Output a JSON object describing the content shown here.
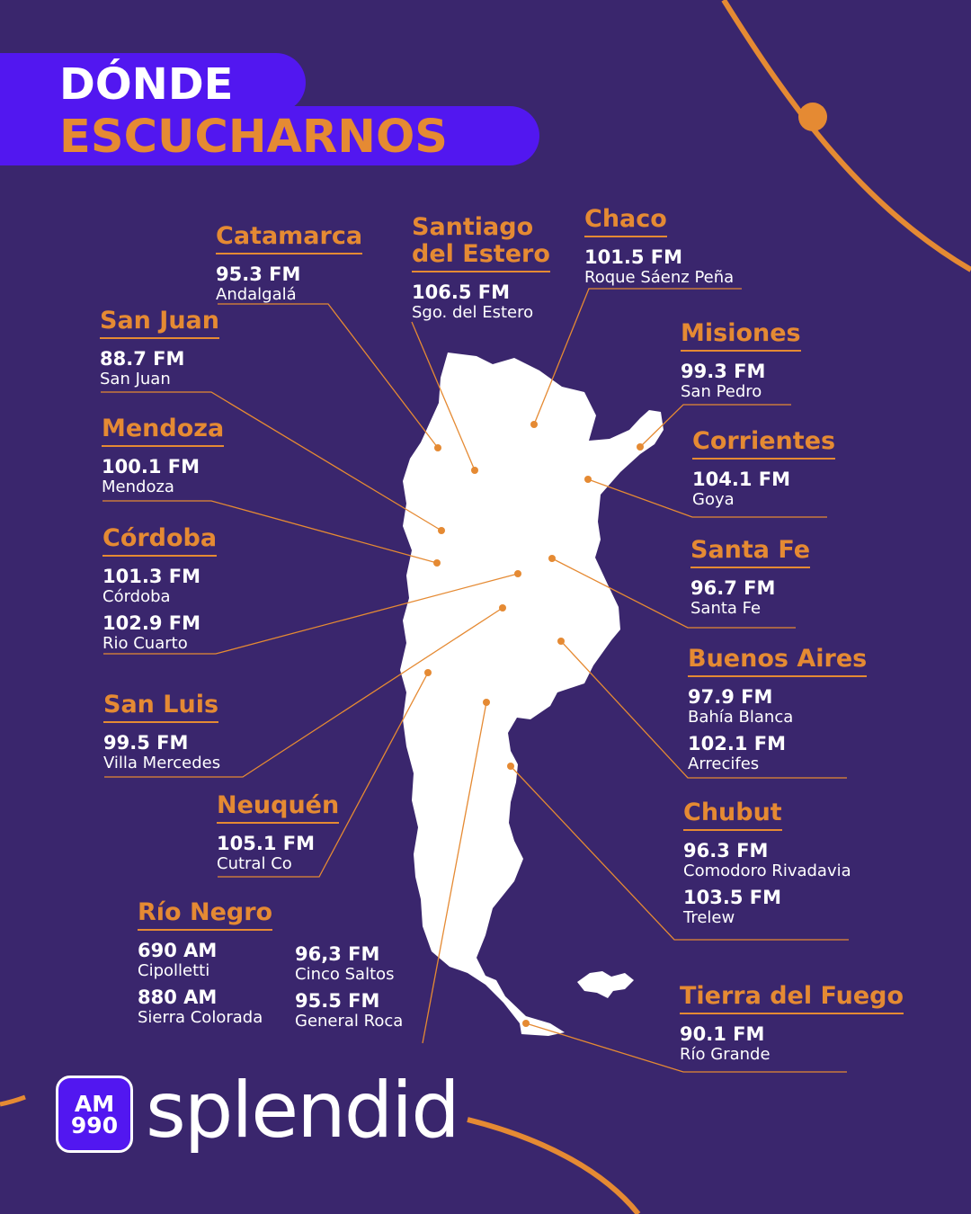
{
  "title": {
    "line1": "DÓNDE",
    "line2": "ESCUCHARNOS"
  },
  "colors": {
    "background": "#3a266d",
    "accent_orange": "#e58a33",
    "brand_purple": "#5217f0",
    "map_fill": "#ffffff",
    "text": "#ffffff"
  },
  "provinces": {
    "catamarca": {
      "name": "Catamarca",
      "stations": [
        {
          "freq": "95.3 FM",
          "city": "Andalgalá"
        }
      ]
    },
    "santiago": {
      "name_line1": "Santiago",
      "name_line2": "del Estero",
      "stations": [
        {
          "freq": "106.5 FM",
          "city": "Sgo. del Estero"
        }
      ]
    },
    "chaco": {
      "name": "Chaco",
      "stations": [
        {
          "freq": "101.5 FM",
          "city": "Roque Sáenz Peña"
        }
      ]
    },
    "san_juan": {
      "name": "San Juan",
      "stations": [
        {
          "freq": "88.7 FM",
          "city": "San Juan"
        }
      ]
    },
    "misiones": {
      "name": "Misiones",
      "stations": [
        {
          "freq": "99.3 FM",
          "city": "San Pedro"
        }
      ]
    },
    "mendoza": {
      "name": "Mendoza",
      "stations": [
        {
          "freq": "100.1 FM",
          "city": "Mendoza"
        }
      ]
    },
    "corrientes": {
      "name": "Corrientes",
      "stations": [
        {
          "freq": "104.1 FM",
          "city": "Goya"
        }
      ]
    },
    "cordoba": {
      "name": "Córdoba",
      "stations": [
        {
          "freq": "101.3 FM",
          "city": "Córdoba"
        },
        {
          "freq": "102.9 FM",
          "city": "Rio Cuarto"
        }
      ]
    },
    "santa_fe": {
      "name": "Santa Fe",
      "stations": [
        {
          "freq": "96.7 FM",
          "city": "Santa Fe"
        }
      ]
    },
    "buenos_aires": {
      "name": "Buenos Aires",
      "stations": [
        {
          "freq": "97.9 FM",
          "city": "Bahía Blanca"
        },
        {
          "freq": "102.1 FM",
          "city": "Arrecifes"
        }
      ]
    },
    "san_luis": {
      "name": "San Luis",
      "stations": [
        {
          "freq": "99.5 FM",
          "city": "Villa Mercedes"
        }
      ]
    },
    "neuquen": {
      "name": "Neuquén",
      "stations": [
        {
          "freq": "105.1 FM",
          "city": "Cutral Co"
        }
      ]
    },
    "chubut": {
      "name": "Chubut",
      "stations": [
        {
          "freq": "96.3 FM",
          "city": "Comodoro Rivadavia"
        },
        {
          "freq": "103.5 FM",
          "city": "Trelew"
        }
      ]
    },
    "rio_negro": {
      "name": "Río Negro",
      "stations": [
        {
          "freq": "690 AM",
          "city": "Cipolletti"
        },
        {
          "freq": "880 AM",
          "city": "Sierra Colorada"
        },
        {
          "freq": "96,3 FM",
          "city": "Cinco Saltos"
        },
        {
          "freq": "95.5 FM",
          "city": "General Roca"
        }
      ]
    },
    "tierra_del_fuego": {
      "name": "Tierra del Fuego",
      "stations": [
        {
          "freq": "90.1 FM",
          "city": "Río Grande"
        }
      ]
    }
  },
  "logo": {
    "badge_line1": "AM",
    "badge_line2": "990",
    "brand": "splendid"
  }
}
